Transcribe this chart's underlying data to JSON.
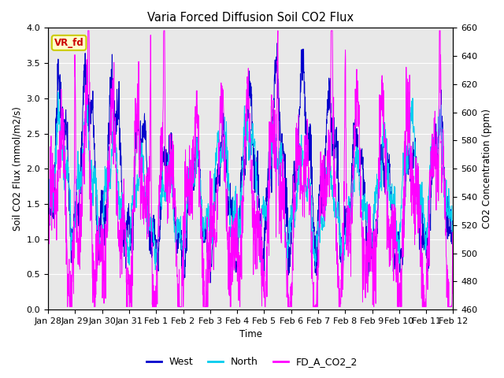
{
  "title": "Varia Forced Diffusion Soil CO2 Flux",
  "xlabel": "Time",
  "ylabel_left": "Soil CO2 Flux (mmol/m2/s)",
  "ylabel_right": "CO2 Concentration (ppm)",
  "ylim_left": [
    0.0,
    4.0
  ],
  "ylim_right": [
    460,
    660
  ],
  "annotation_text": "VR_fd",
  "annotation_color": "#cc0000",
  "annotation_bg": "#ffffcc",
  "annotation_border": "#cccc00",
  "west_color": "#0000cc",
  "north_color": "#00ccee",
  "co2_color": "#ff00ff",
  "legend_labels": [
    "West",
    "North",
    "FD_A_CO2_2"
  ],
  "x_tick_labels": [
    "Jan 28",
    "Jan 29",
    "Jan 30",
    "Jan 31",
    "Feb 1",
    "Feb 2",
    "Feb 3",
    "Feb 4",
    "Feb 5",
    "Feb 6",
    "Feb 7",
    "Feb 8",
    "Feb 9",
    "Feb 10",
    "Feb 11",
    "Feb 12"
  ],
  "n_points": 2000,
  "n_days": 15,
  "background_color": "#e8e8e8",
  "yticks_left": [
    0.0,
    0.5,
    1.0,
    1.5,
    2.0,
    2.5,
    3.0,
    3.5,
    4.0
  ],
  "yticks_right": [
    460,
    480,
    500,
    520,
    540,
    560,
    580,
    600,
    620,
    640,
    660
  ]
}
